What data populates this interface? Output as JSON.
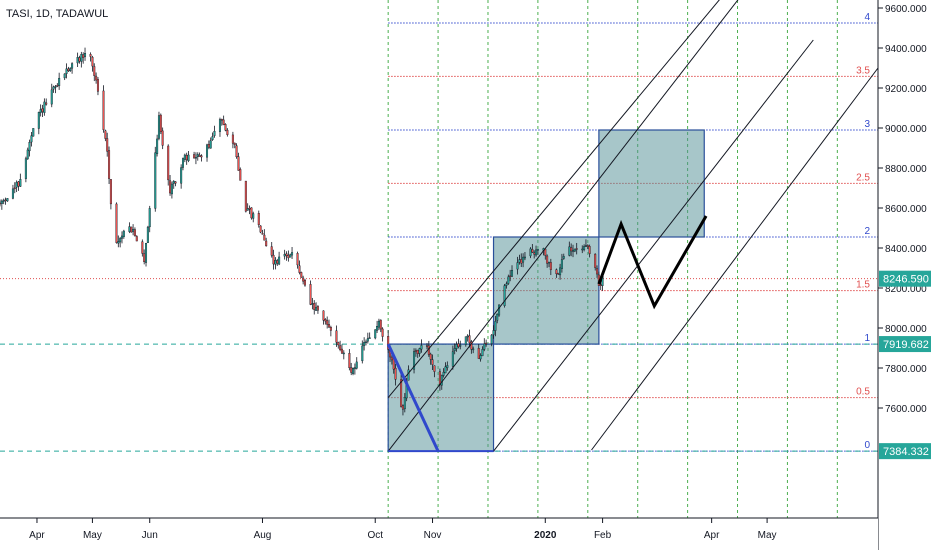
{
  "header": {
    "title": "TASI, 1D, TADAWUL"
  },
  "colors": {
    "up": "#26a69a",
    "down": "#ef5350",
    "wick": "#131722",
    "fib_blue": "#3048cc",
    "fib_red": "#e05050",
    "teal_line": "#26a69a",
    "box_fill": "#4f8d94",
    "box_stroke": "#2a4f9a",
    "vgrid": "#4caf50",
    "badge_teal": "#26a69a",
    "axis": "#131722"
  },
  "chart_data": {
    "type": "candlestick",
    "title": "TASI, 1D, TADAWUL",
    "y_axis": {
      "ylim": [
        7050,
        9640
      ],
      "ticks": [
        7600,
        7800,
        8000,
        8200,
        8400,
        8600,
        8800,
        9000,
        9200,
        9400,
        9600
      ],
      "tick_labels": [
        "7600.000",
        "7800.000",
        "8000.000",
        "8200.000",
        "8400.000",
        "8600.000",
        "8800.000",
        "9000.000",
        "9200.000",
        "9400.000",
        "9600.000"
      ]
    },
    "x_axis": {
      "labels": [
        {
          "text": "Apr",
          "day": 20
        },
        {
          "text": "May",
          "day": 50
        },
        {
          "text": "Jun",
          "day": 81
        },
        {
          "text": "Aug",
          "day": 142
        },
        {
          "text": "Oct",
          "day": 203
        },
        {
          "text": "Nov",
          "day": 234
        },
        {
          "text": "2020",
          "day": 295,
          "bold": true
        },
        {
          "text": "Feb",
          "day": 326
        },
        {
          "text": "Apr",
          "day": 385
        },
        {
          "text": "May",
          "day": 415
        }
      ],
      "xlim": [
        0,
        475
      ]
    },
    "price_path": [
      [
        0,
        8620
      ],
      [
        10,
        8720
      ],
      [
        20,
        9050
      ],
      [
        35,
        9280
      ],
      [
        48,
        9390
      ],
      [
        52,
        9230
      ],
      [
        58,
        8880
      ],
      [
        62,
        8400
      ],
      [
        70,
        8520
      ],
      [
        78,
        8340
      ],
      [
        86,
        9050
      ],
      [
        92,
        8680
      ],
      [
        100,
        8850
      ],
      [
        110,
        8860
      ],
      [
        120,
        9050
      ],
      [
        127,
        8900
      ],
      [
        133,
        8600
      ],
      [
        140,
        8520
      ],
      [
        148,
        8330
      ],
      [
        158,
        8380
      ],
      [
        168,
        8120
      ],
      [
        180,
        7980
      ],
      [
        190,
        7780
      ],
      [
        198,
        7930
      ],
      [
        205,
        8020
      ],
      [
        212,
        7830
      ],
      [
        218,
        7580
      ],
      [
        222,
        7860
      ],
      [
        230,
        7920
      ],
      [
        238,
        7720
      ],
      [
        245,
        7890
      ],
      [
        252,
        7960
      ],
      [
        258,
        7850
      ],
      [
        266,
        7960
      ],
      [
        272,
        8200
      ],
      [
        278,
        8300
      ],
      [
        286,
        8380
      ],
      [
        293,
        8400
      ],
      [
        300,
        8250
      ],
      [
        308,
        8400
      ],
      [
        314,
        8420
      ],
      [
        319,
        8380
      ],
      [
        324,
        8220
      ],
      [
        326,
        8240
      ]
    ],
    "price_volatility": 28,
    "price_line": {
      "value": 8246.59,
      "label": "8246.590"
    },
    "fib_levels": [
      {
        "level": "0",
        "value": 7384.332,
        "color": "#3048cc"
      },
      {
        "level": "0.5",
        "value": 7652,
        "color": "#e05050"
      },
      {
        "level": "1",
        "value": 7919.682,
        "color": "#3048cc"
      },
      {
        "level": "1.5",
        "value": 8187,
        "color": "#e05050"
      },
      {
        "level": "2",
        "value": 8455,
        "color": "#3048cc"
      },
      {
        "level": "2.5",
        "value": 8723,
        "color": "#e05050"
      },
      {
        "level": "3",
        "value": 8990,
        "color": "#3048cc"
      },
      {
        "level": "3.5",
        "value": 9258,
        "color": "#e05050"
      },
      {
        "level": "4",
        "value": 9525,
        "color": "#3048cc"
      }
    ],
    "fib_start_day": 210,
    "level_badges": [
      {
        "value": 7919.682,
        "label": "7919.682"
      },
      {
        "value": 7384.332,
        "label": "7384.332"
      }
    ],
    "dashed_price_lines": [
      7919.682,
      7384.332
    ],
    "red_dotted_line": 8246.59,
    "vgrid_days": [
      210,
      237,
      264,
      291,
      318,
      345,
      372,
      399,
      426,
      453
    ],
    "boxes": [
      {
        "day0": 210,
        "day1": 267,
        "y0": 7384.332,
        "y1": 7919.682
      },
      {
        "day0": 267,
        "day1": 324,
        "y0": 7919.682,
        "y1": 8455
      },
      {
        "day0": 324,
        "day1": 381,
        "y0": 8455,
        "y1": 8990
      }
    ],
    "channel_lines": [
      {
        "x0": 210,
        "y0": 7384.332,
        "x1": 400,
        "y1": 9650
      },
      {
        "x0": 210,
        "y0": 7652,
        "x1": 390,
        "y1": 9650
      },
      {
        "x0": 267,
        "y0": 7384.332,
        "x1": 440,
        "y1": 9440
      },
      {
        "x0": 320,
        "y0": 7390,
        "x1": 475,
        "y1": 9300
      }
    ],
    "blue_diagonal": {
      "x0": 210,
      "y0": 7919.682,
      "x1": 237,
      "y1": 7384.332
    },
    "projection_path": [
      [
        324,
        8220
      ],
      [
        336,
        8520
      ],
      [
        354,
        8110
      ],
      [
        382,
        8560
      ]
    ]
  }
}
